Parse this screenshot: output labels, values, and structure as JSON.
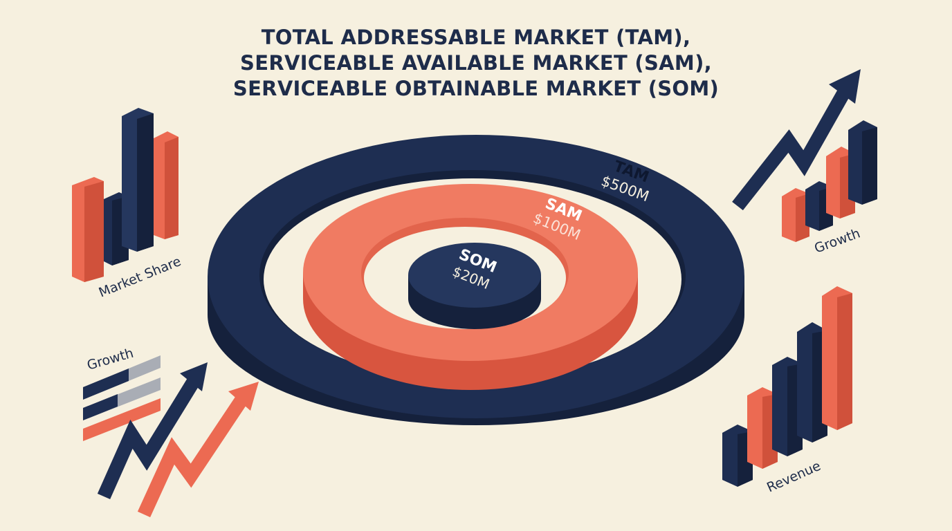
{
  "title": {
    "line1": "TOTAL ADDRESSABLE MARKET (TAM),",
    "line2": "SERVICEABLE AVAILABLE MARKET (SAM),",
    "line3": "SERVICEABLE OBTAINABLE MARKET (SOM)"
  },
  "rings": {
    "tam": {
      "name": "TAM",
      "value": "$500M"
    },
    "sam": {
      "name": "SAM",
      "value": "$100M"
    },
    "som": {
      "name": "SOM",
      "value": "$20M"
    }
  },
  "side_charts": {
    "market_share_label": "Market Share",
    "growth_top_right_label": "Growth",
    "growth_left_label": "Growth",
    "revenue_label": "Revenue"
  },
  "colors": {
    "navy": "#1e2e52",
    "navy_dark": "#15213c",
    "coral": "#ec6a52",
    "coral_light": "#f08a72",
    "background": "#f6f0df",
    "gray": "#a9adb5"
  }
}
